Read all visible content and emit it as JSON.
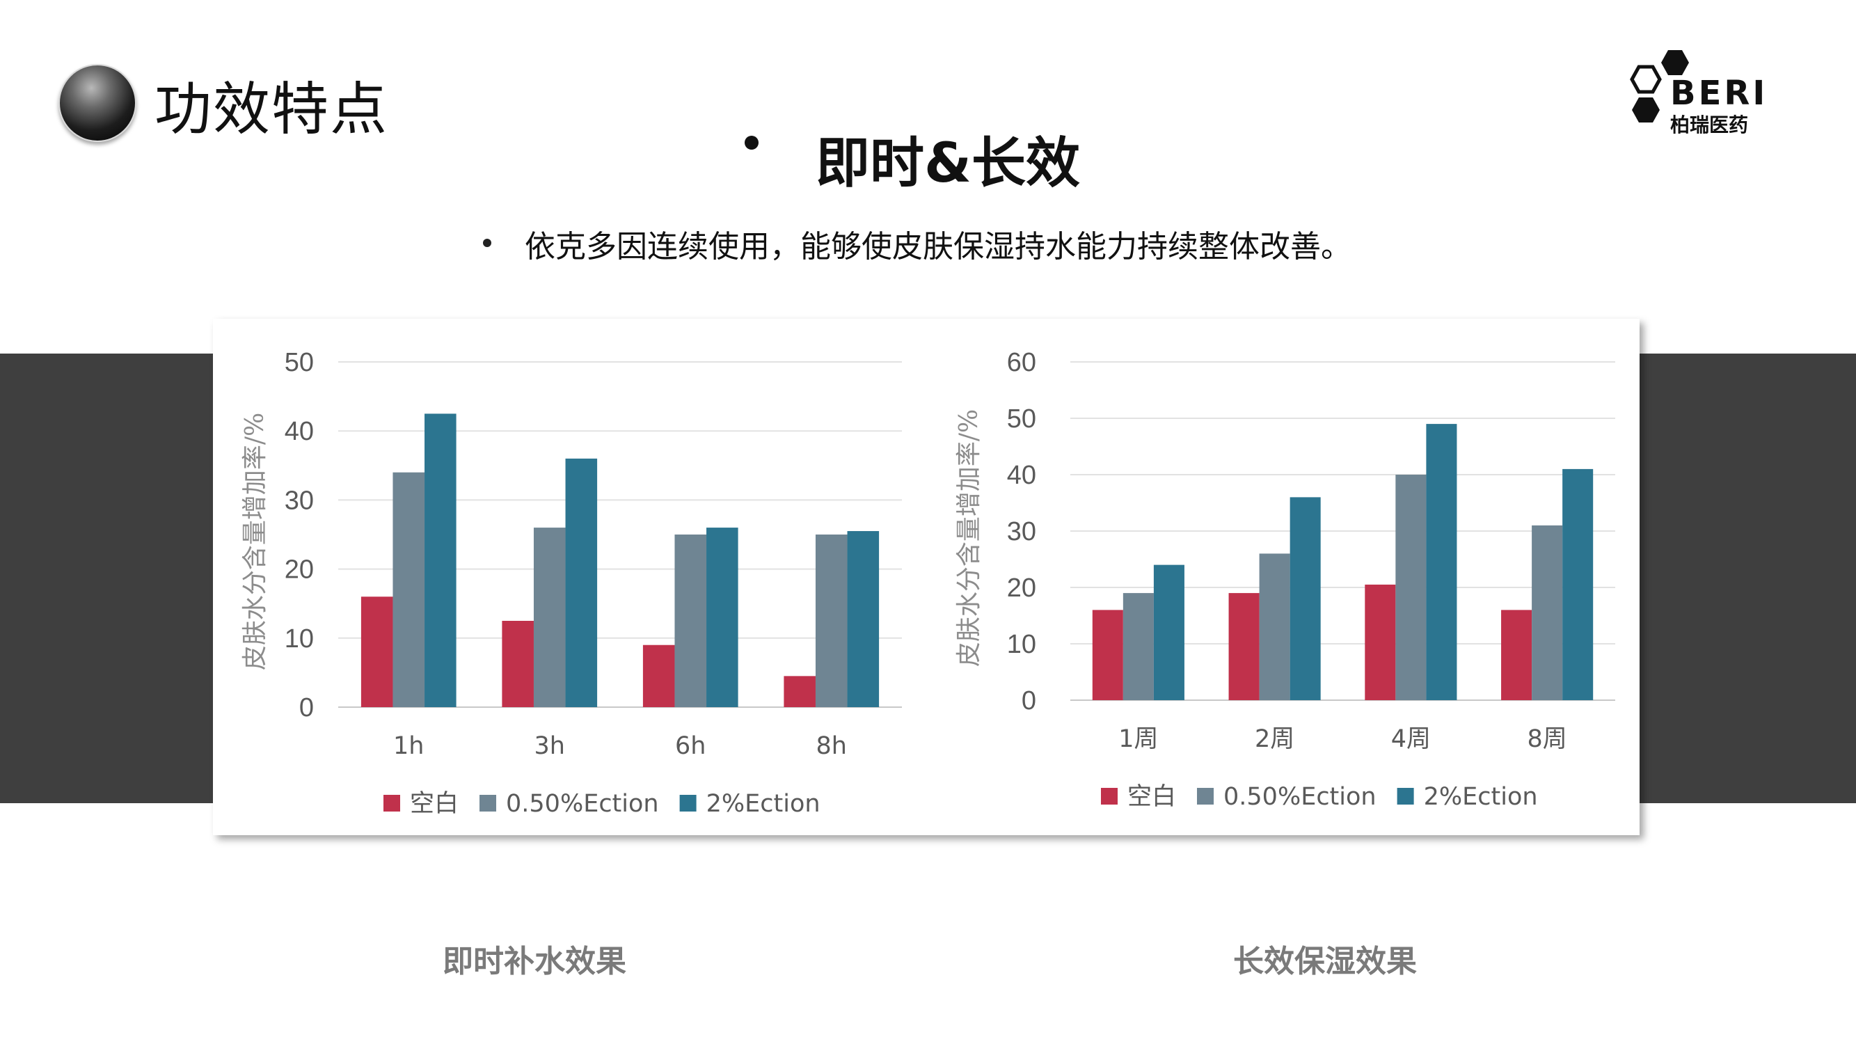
{
  "page": {
    "title": "功效特点",
    "heading": "即时&长效",
    "subtext": "依克多因连续使用，能够使皮肤保湿持水能力持续整体改善。"
  },
  "logo": {
    "mark": "BERI",
    "name": "柏瑞医药"
  },
  "captions": {
    "left": "即时补水效果",
    "right": "长效保湿效果"
  },
  "colors": {
    "blank": "#c0314b",
    "low": "#6f8593",
    "high": "#2c7590",
    "band": "#3f3f3f"
  },
  "chart_data": [
    {
      "type": "bar",
      "categories": [
        "1h",
        "3h",
        "6h",
        "8h"
      ],
      "series": [
        {
          "name": "空白",
          "values": [
            16,
            12.5,
            9,
            4.5
          ]
        },
        {
          "name": "0.50%Ection",
          "values": [
            34,
            26,
            25,
            25
          ]
        },
        {
          "name": "2%Ection",
          "values": [
            42.5,
            36,
            26,
            25.5
          ]
        }
      ],
      "ylabel": "皮肤水分含量增加率/%",
      "ylim": [
        0,
        50
      ],
      "yticks": [
        0,
        10,
        20,
        30,
        40,
        50
      ],
      "grid": true,
      "legend": "bottom"
    },
    {
      "type": "bar",
      "categories": [
        "1周",
        "2周",
        "4周",
        "8周"
      ],
      "series": [
        {
          "name": "空白",
          "values": [
            16,
            19,
            20.5,
            16
          ]
        },
        {
          "name": "0.50%Ection",
          "values": [
            19,
            26,
            40,
            31
          ]
        },
        {
          "name": "2%Ection",
          "values": [
            24,
            36,
            49,
            41
          ]
        }
      ],
      "ylabel": "皮肤水分含量增加率/%",
      "ylim": [
        0,
        60
      ],
      "yticks": [
        0,
        10,
        20,
        30,
        40,
        50,
        60
      ],
      "grid": true,
      "legend": "bottom"
    }
  ]
}
